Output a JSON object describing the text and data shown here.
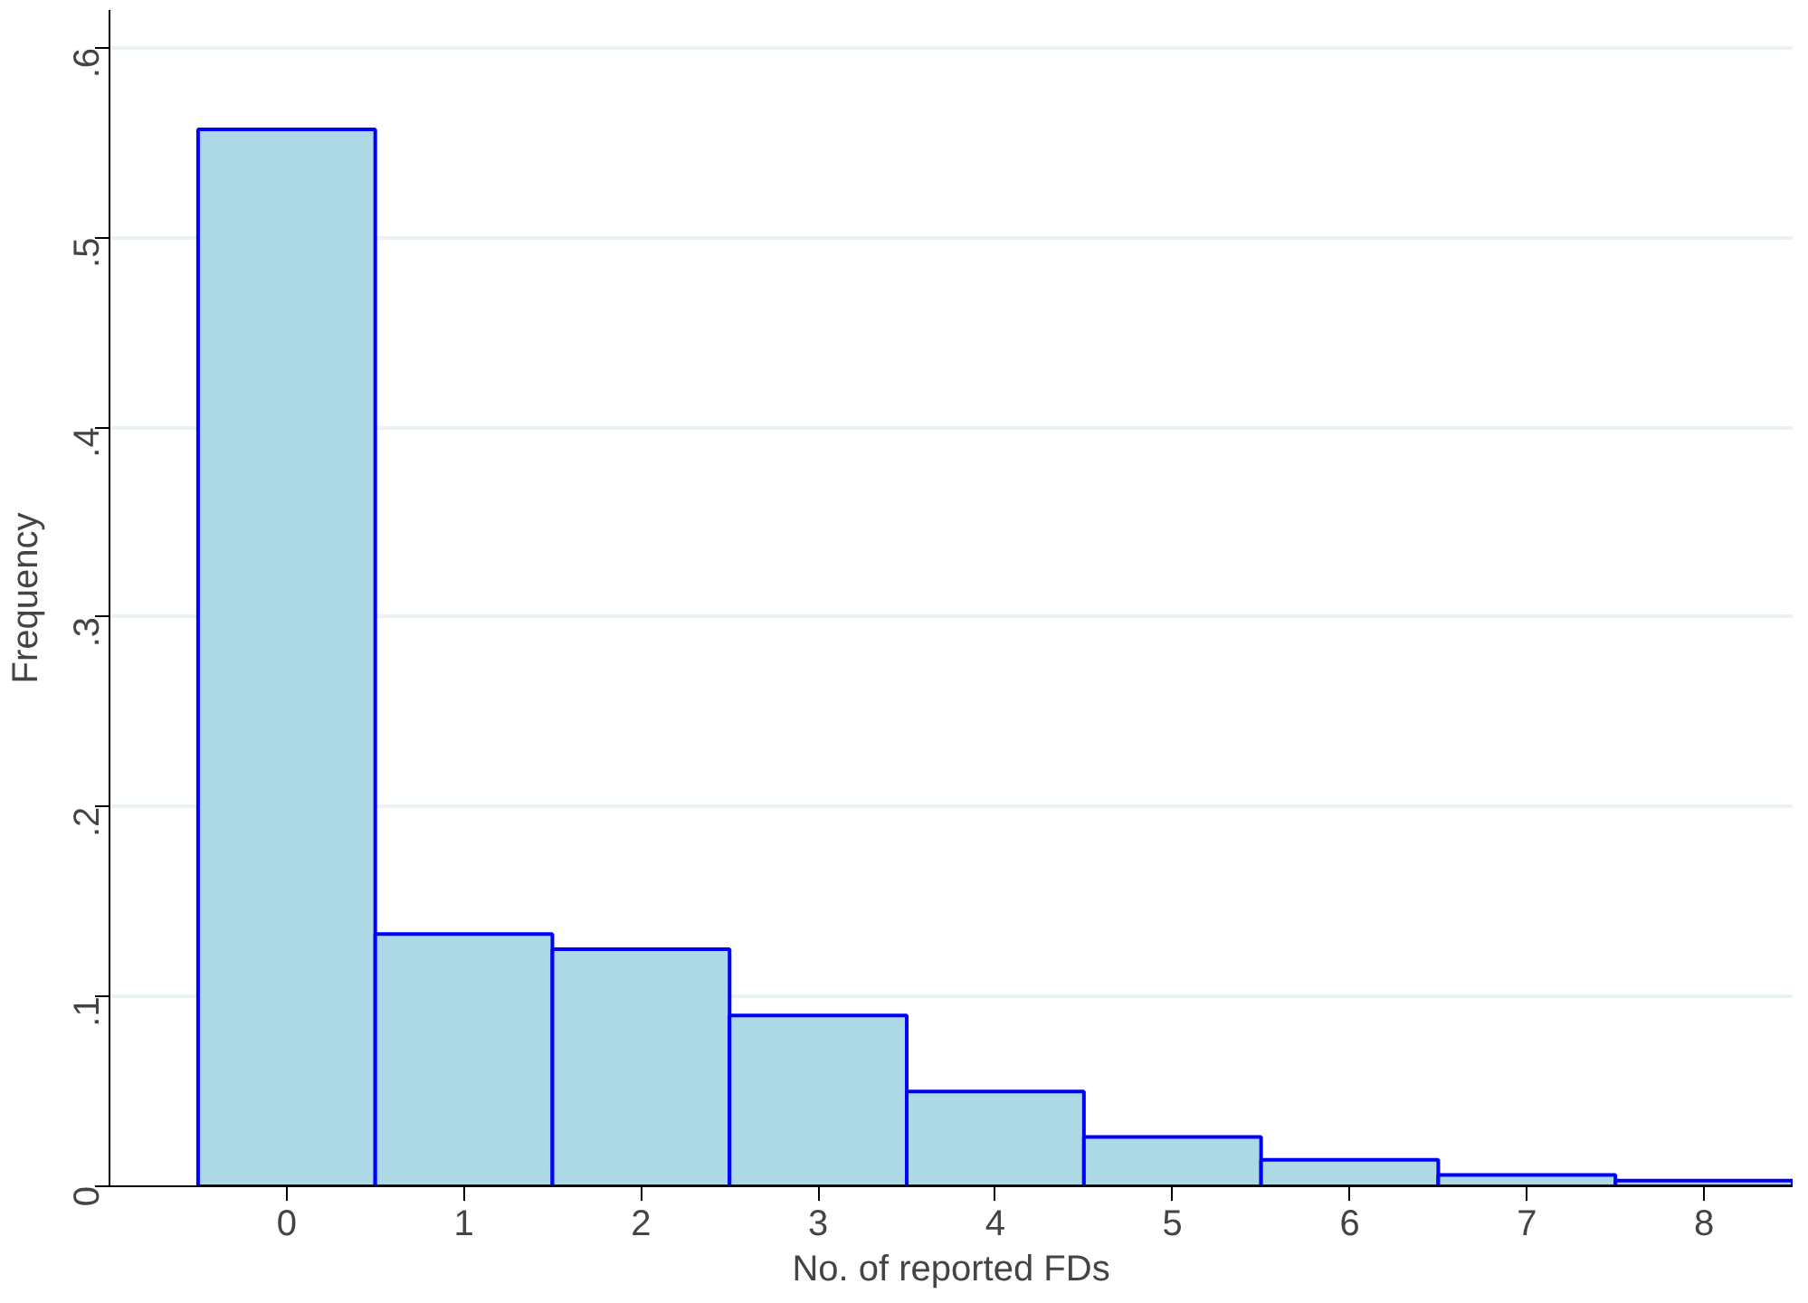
{
  "chart_data": {
    "type": "histogram",
    "xlabel": "No. of reported FDs",
    "ylabel": "Frequency",
    "bins": [
      -0.5,
      0.5,
      1.5,
      2.5,
      3.5,
      4.5,
      5.5,
      6.5,
      7.5,
      8.5
    ],
    "values": [
      0.557,
      0.133,
      0.125,
      0.09,
      0.05,
      0.026,
      0.014,
      0.006,
      0.003
    ],
    "color": "#add8e6",
    "xlim": [
      -1,
      8.5
    ],
    "xticks": [
      0,
      1,
      2,
      3,
      4,
      5,
      6,
      7,
      8
    ],
    "ylim": [
      0,
      0.62
    ],
    "yticks": [
      {
        "value": 0,
        "label": "0"
      },
      {
        "value": 0.1,
        "label": ".1"
      },
      {
        "value": 0.2,
        "label": ".2"
      },
      {
        "value": 0.3,
        "label": ".3"
      },
      {
        "value": 0.4,
        "label": ".4"
      },
      {
        "value": 0.5,
        "label": ".5"
      },
      {
        "value": 0.6,
        "label": ".6"
      }
    ],
    "grid": "y"
  }
}
